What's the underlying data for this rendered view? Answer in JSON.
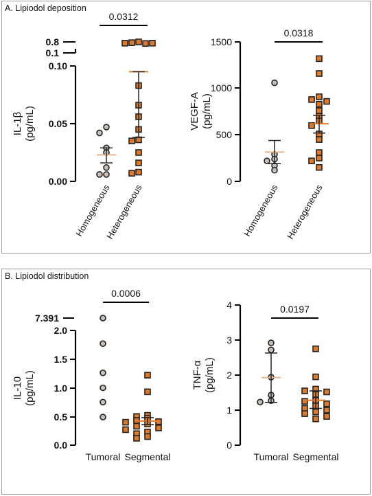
{
  "panels": [
    {
      "title": "A. Lipiodol deposition"
    },
    {
      "title": "B. Lipiodol distribution"
    }
  ],
  "colors": {
    "homogeneous_fill": "#c8c0b6",
    "heterogeneous_fill": "#e07a2a",
    "mean_light": "#e6b58a",
    "mean_dark": "#e07a2a",
    "axis": "#000000"
  },
  "chart_data": [
    {
      "type": "scatter",
      "ylabel": "IL-1β (pg/mL)",
      "categories": [
        "Homogeneous",
        "Heterogeneous"
      ],
      "yaxis_segments": [
        {
          "range": [
            0,
            0.1
          ],
          "ticks": [
            "0.00",
            "0.05",
            "0.10"
          ]
        },
        {
          "range": [
            0.1,
            0.8
          ],
          "ticks": [
            "0.1",
            "0.8"
          ]
        }
      ],
      "series": [
        {
          "values": [
            0.047,
            0.042,
            0.029,
            0.025,
            0.012,
            0.006,
            0.006
          ],
          "mean": 0.023,
          "sem": [
            0.016,
            0.029
          ]
        },
        {
          "values": [
            0.8,
            0.75,
            0.7,
            0.72,
            0.72,
            0.083,
            0.066,
            0.056,
            0.045,
            0.036,
            0.035,
            0.025,
            0.016,
            0.008,
            0.007
          ],
          "mean": 0.095,
          "sem": [
            0.038,
            0.095
          ]
        }
      ],
      "comparison": {
        "label": "0.0312"
      }
    },
    {
      "type": "scatter",
      "ylabel": "VEGF-A (pg/mL)",
      "categories": [
        "Homogeneous",
        "Heterogeneous"
      ],
      "ylim": [
        0,
        1500
      ],
      "yticks": [
        "0",
        "500",
        "1000",
        "1500"
      ],
      "series": [
        {
          "values": [
            1060,
            290,
            240,
            220,
            170,
            120
          ],
          "mean": 315,
          "sem": [
            190,
            440
          ]
        },
        {
          "values": [
            1320,
            1160,
            910,
            880,
            860,
            830,
            760,
            700,
            650,
            600,
            510,
            450,
            310,
            250,
            220,
            150
          ],
          "mean": 620,
          "sem": [
            520,
            710
          ]
        }
      ],
      "comparison": {
        "label": "0.0318"
      }
    },
    {
      "type": "scatter",
      "ylabel": "IL-10 (pg/mL)",
      "categories": [
        "Tumoral",
        "Segmental"
      ],
      "yaxis_segments": [
        {
          "range": [
            0,
            2.0
          ],
          "ticks": [
            "0.0",
            "0.5",
            "1.0",
            "1.5",
            "2.0"
          ]
        },
        {
          "range": [
            2.0,
            7.391
          ],
          "ticks": [
            "7.391"
          ]
        }
      ],
      "series": [
        {
          "values": [
            7.391,
            1.77,
            1.26,
            1.0,
            0.75,
            0.49
          ]
        },
        {
          "values": [
            1.22,
            0.93,
            0.52,
            0.5,
            0.47,
            0.43,
            0.41,
            0.4,
            0.37,
            0.33,
            0.3,
            0.27,
            0.23,
            0.2,
            0.15,
            0.12
          ],
          "mean": 0.42,
          "sem": [
            0.36,
            0.48
          ]
        }
      ],
      "comparison": {
        "label": "0.0006"
      }
    },
    {
      "type": "scatter",
      "ylabel": "TNF-α (pg/mL)",
      "categories": [
        "Tumoral",
        "Segmental"
      ],
      "ylim": [
        0,
        4
      ],
      "yticks": [
        "0",
        "1",
        "2",
        "3",
        "4"
      ],
      "series": [
        {
          "values": [
            2.92,
            2.72,
            1.94,
            1.43,
            1.27,
            1.23
          ],
          "mean": 1.93,
          "sem": [
            1.22,
            2.63
          ]
        },
        {
          "values": [
            2.75,
            1.95,
            1.6,
            1.55,
            1.52,
            1.45,
            1.28,
            1.25,
            1.18,
            1.12,
            1.05,
            1.0,
            0.95,
            0.9,
            0.82,
            0.75
          ],
          "mean": 1.28,
          "sem": [
            1.05,
            1.55
          ]
        }
      ],
      "comparison": {
        "label": "0.0197"
      }
    }
  ]
}
